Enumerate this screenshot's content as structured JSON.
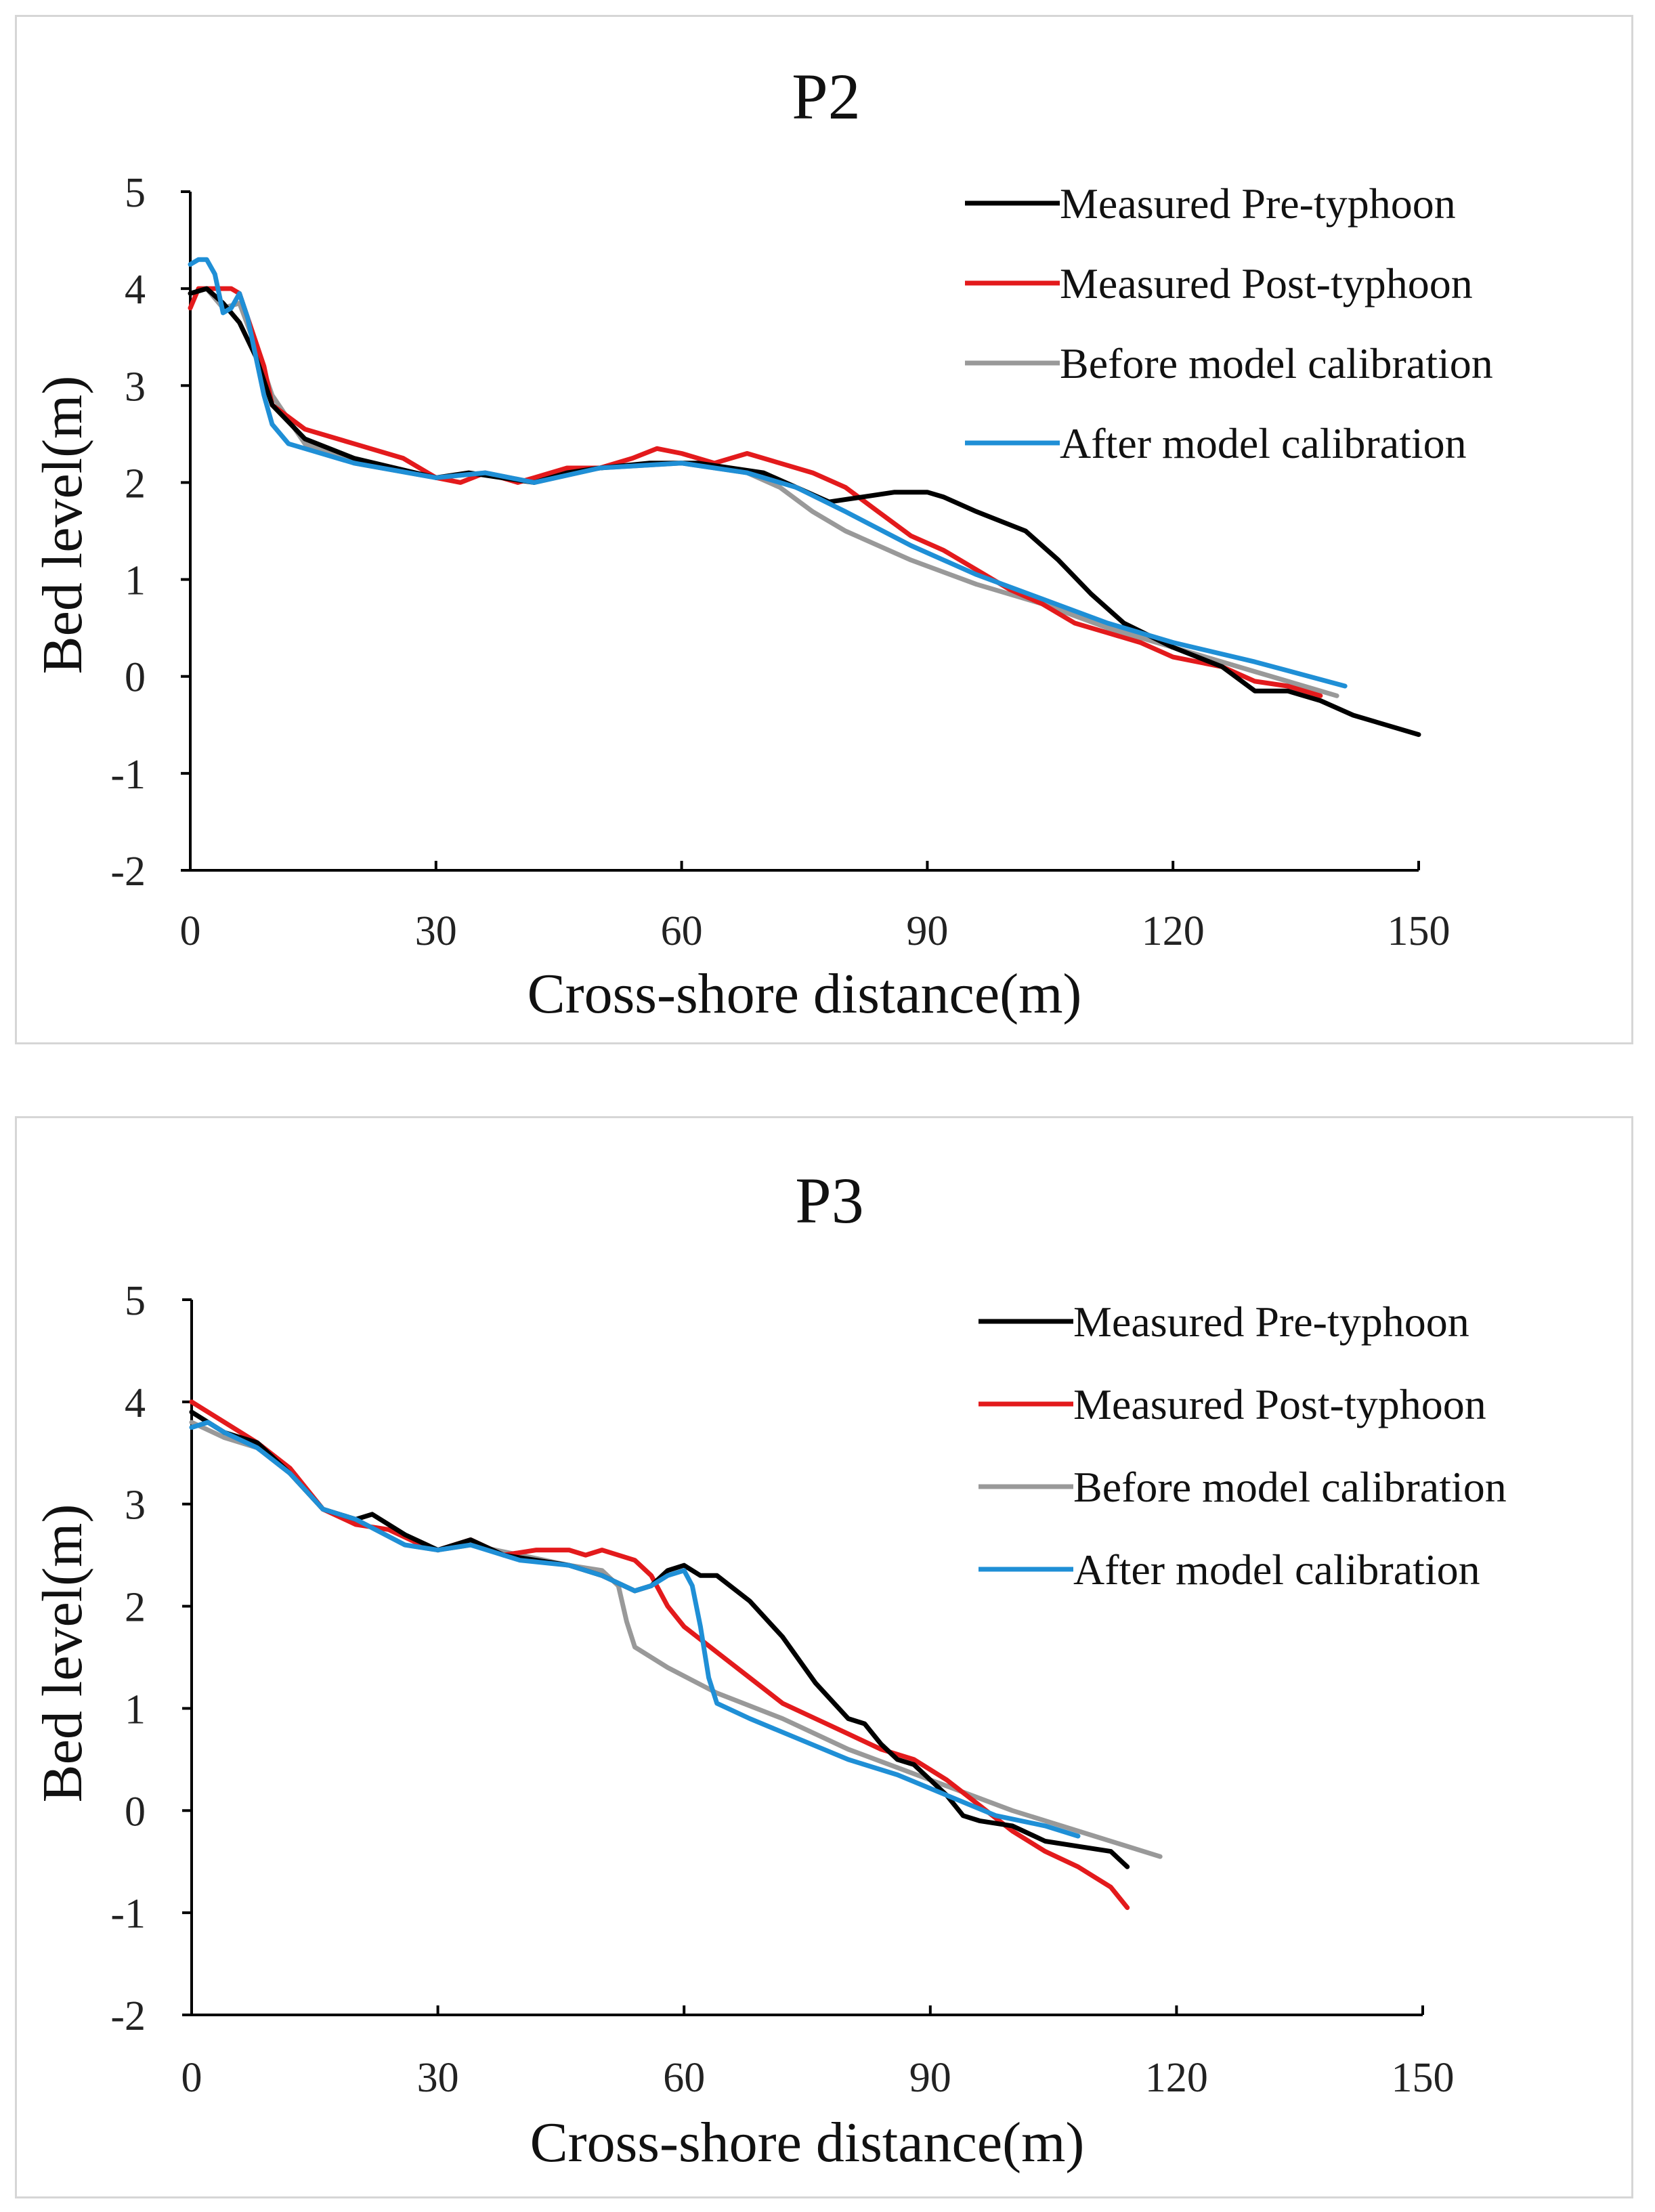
{
  "chart_data": [
    {
      "type": "line",
      "title": "P2",
      "xlabel": "Cross-shore  distance(m)",
      "ylabel": "Bed level(m)",
      "xlim": [
        0,
        150
      ],
      "ylim": [
        -2,
        5
      ],
      "xticks": [
        "0",
        "30",
        "60",
        "90",
        "120",
        "150"
      ],
      "yticks": [
        "5",
        "4",
        "3",
        "2",
        "1",
        "0",
        "-1",
        "-2"
      ],
      "legend_position": "top-right",
      "series": [
        {
          "name": "Measured Pre-typhoon",
          "color": "#000000",
          "x": [
            0,
            2,
            4,
            6,
            8,
            10,
            14,
            20,
            30,
            34,
            38,
            42,
            46,
            50,
            56,
            62,
            70,
            78,
            82,
            86,
            90,
            92,
            96,
            102,
            106,
            110,
            114,
            120,
            126,
            130,
            134,
            138,
            142,
            146,
            150
          ],
          "y": [
            3.95,
            4.0,
            3.85,
            3.65,
            3.3,
            2.8,
            2.45,
            2.25,
            2.05,
            2.1,
            2.05,
            2.0,
            2.1,
            2.15,
            2.2,
            2.2,
            2.1,
            1.8,
            1.85,
            1.9,
            1.9,
            1.85,
            1.7,
            1.5,
            1.2,
            0.85,
            0.55,
            0.3,
            0.1,
            -0.15,
            -0.15,
            -0.25,
            -0.4,
            -0.5,
            -0.6
          ]
        },
        {
          "name": "Measured Post-typhoon",
          "color": "#e31a1c",
          "x": [
            0,
            1,
            3,
            5,
            6,
            7,
            9,
            10,
            14,
            20,
            26,
            30,
            33,
            36,
            40,
            42,
            46,
            50,
            54,
            57,
            60,
            64,
            68,
            72,
            76,
            80,
            84,
            88,
            92,
            96,
            100,
            104,
            108,
            112,
            116,
            120,
            126,
            130,
            134,
            138
          ],
          "y": [
            3.8,
            4.0,
            4.0,
            4.0,
            3.95,
            3.7,
            3.2,
            2.8,
            2.55,
            2.4,
            2.25,
            2.05,
            2.0,
            2.1,
            2.0,
            2.05,
            2.15,
            2.15,
            2.25,
            2.35,
            2.3,
            2.2,
            2.3,
            2.2,
            2.1,
            1.95,
            1.7,
            1.45,
            1.3,
            1.1,
            0.9,
            0.75,
            0.55,
            0.45,
            0.35,
            0.2,
            0.1,
            -0.05,
            -0.1,
            -0.2
          ]
        },
        {
          "name": "Before model calibration",
          "color": "#999999",
          "x": [
            0,
            2,
            4,
            6,
            8,
            10,
            14,
            20,
            30,
            36,
            42,
            50,
            60,
            68,
            72,
            76,
            80,
            88,
            96,
            104,
            112,
            120,
            130,
            140
          ],
          "y": [
            3.95,
            4.0,
            3.8,
            3.85,
            3.4,
            2.9,
            2.4,
            2.2,
            2.05,
            2.1,
            2.0,
            2.15,
            2.2,
            2.1,
            1.95,
            1.7,
            1.5,
            1.2,
            0.95,
            0.75,
            0.5,
            0.3,
            0.05,
            -0.2
          ]
        },
        {
          "name": "After model calibration",
          "color": "#1f8fd6",
          "x": [
            0,
            1,
            2,
            3,
            4,
            5,
            6,
            7,
            8,
            9,
            10,
            12,
            14,
            20,
            30,
            36,
            42,
            50,
            60,
            68,
            74,
            80,
            88,
            96,
            104,
            112,
            120,
            130,
            141
          ],
          "y": [
            4.25,
            4.3,
            4.3,
            4.15,
            3.75,
            3.8,
            3.95,
            3.7,
            3.3,
            2.9,
            2.6,
            2.4,
            2.35,
            2.2,
            2.05,
            2.1,
            2.0,
            2.15,
            2.2,
            2.1,
            1.95,
            1.7,
            1.35,
            1.05,
            0.8,
            0.55,
            0.35,
            0.15,
            -0.1
          ]
        }
      ]
    },
    {
      "type": "line",
      "title": "P3",
      "xlabel": "Cross-shore  distance(m)",
      "ylabel": "Bed level(m)",
      "xlim": [
        0,
        150
      ],
      "ylim": [
        -2,
        5
      ],
      "xticks": [
        "0",
        "30",
        "60",
        "90",
        "120",
        "150"
      ],
      "yticks": [
        "5",
        "4",
        "3",
        "2",
        "1",
        "0",
        "-1",
        "-2"
      ],
      "legend_position": "top-right",
      "series": [
        {
          "name": "Measured Pre-typhoon",
          "color": "#000000",
          "x": [
            0,
            4,
            8,
            12,
            16,
            20,
            22,
            26,
            30,
            34,
            38,
            42,
            46,
            50,
            54,
            56,
            58,
            60,
            62,
            64,
            68,
            72,
            76,
            80,
            82,
            84,
            86,
            88,
            90,
            92,
            94,
            96,
            100,
            104,
            108,
            112,
            114
          ],
          "y": [
            3.9,
            3.7,
            3.6,
            3.3,
            2.95,
            2.85,
            2.9,
            2.7,
            2.55,
            2.65,
            2.5,
            2.45,
            2.4,
            2.3,
            2.15,
            2.2,
            2.35,
            2.4,
            2.3,
            2.3,
            2.05,
            1.7,
            1.25,
            0.9,
            0.85,
            0.65,
            0.5,
            0.45,
            0.3,
            0.15,
            -0.05,
            -0.1,
            -0.15,
            -0.3,
            -0.35,
            -0.4,
            -0.55
          ]
        },
        {
          "name": "Measured Post-typhoon",
          "color": "#e31a1c",
          "x": [
            0,
            4,
            8,
            12,
            16,
            20,
            24,
            28,
            30,
            34,
            38,
            42,
            46,
            48,
            50,
            54,
            56,
            58,
            60,
            64,
            68,
            72,
            76,
            80,
            84,
            88,
            92,
            96,
            100,
            104,
            108,
            112,
            114
          ],
          "y": [
            4.0,
            3.8,
            3.6,
            3.35,
            2.95,
            2.8,
            2.75,
            2.6,
            2.55,
            2.65,
            2.5,
            2.55,
            2.55,
            2.5,
            2.55,
            2.45,
            2.3,
            2.0,
            1.8,
            1.55,
            1.3,
            1.05,
            0.9,
            0.75,
            0.6,
            0.5,
            0.3,
            0.05,
            -0.2,
            -0.4,
            -0.55,
            -0.75,
            -0.95
          ]
        },
        {
          "name": "Before model calibration",
          "color": "#999999",
          "x": [
            0,
            4,
            8,
            12,
            16,
            20,
            26,
            30,
            34,
            40,
            46,
            50,
            52,
            53,
            54,
            58,
            64,
            72,
            80,
            90,
            100,
            110,
            118
          ],
          "y": [
            3.8,
            3.65,
            3.55,
            3.3,
            2.95,
            2.85,
            2.6,
            2.55,
            2.6,
            2.5,
            2.4,
            2.35,
            2.2,
            1.85,
            1.6,
            1.4,
            1.15,
            0.9,
            0.6,
            0.3,
            0.0,
            -0.25,
            -0.45
          ]
        },
        {
          "name": "After model calibration",
          "color": "#1f8fd6",
          "x": [
            0,
            2,
            4,
            8,
            12,
            16,
            20,
            26,
            30,
            34,
            40,
            46,
            50,
            54,
            56,
            58,
            60,
            61,
            62,
            63,
            64,
            68,
            74,
            80,
            86,
            92,
            98,
            104,
            108
          ],
          "y": [
            3.75,
            3.8,
            3.7,
            3.55,
            3.3,
            2.95,
            2.85,
            2.6,
            2.55,
            2.6,
            2.45,
            2.4,
            2.3,
            2.15,
            2.2,
            2.3,
            2.35,
            2.2,
            1.8,
            1.3,
            1.05,
            0.9,
            0.7,
            0.5,
            0.35,
            0.15,
            -0.05,
            -0.15,
            -0.25
          ]
        }
      ]
    }
  ]
}
